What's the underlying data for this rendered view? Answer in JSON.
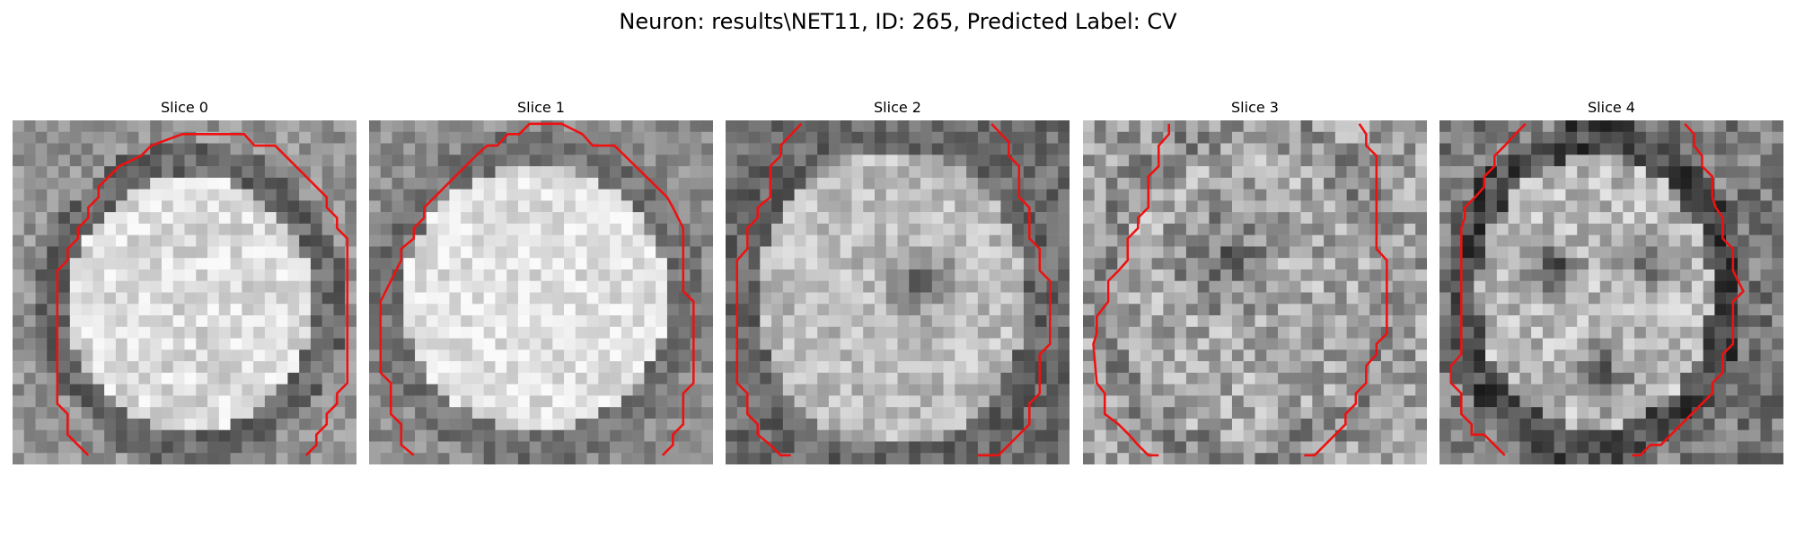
{
  "figure": {
    "title": "Neuron: results\\NET11, ID: 265, Predicted Label: CV"
  },
  "colors": {
    "contour": "#ee1111",
    "background": "#ffffff",
    "text": "#000000"
  },
  "panels": [
    {
      "title": "Slice 0"
    },
    {
      "title": "Slice 1"
    },
    {
      "title": "Slice 2"
    },
    {
      "title": "Slice 3"
    },
    {
      "title": "Slice 4"
    }
  ]
}
